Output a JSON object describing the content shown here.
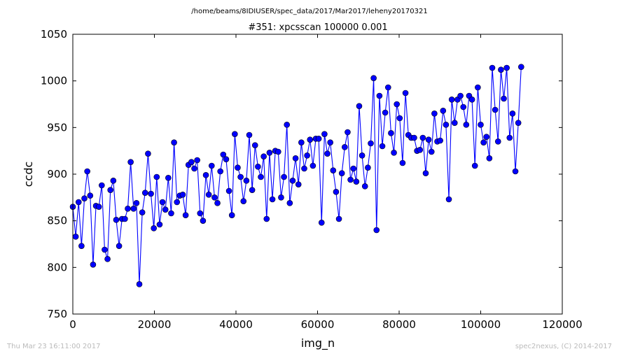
{
  "header": {
    "path": "/home/beams/8IDIUSER/spec_data/2017/Mar2017/leheny20170321"
  },
  "footer": {
    "timestamp": "Thu Mar 23 16:11:00 2017",
    "credit": "spec2nexus, (C) 2014-2017"
  },
  "colors": {
    "series": "#0000ff",
    "marker_fill": "#0000ff",
    "axes": "#000000"
  },
  "chart_data": {
    "type": "line",
    "title": "#351: xpcsscan 100000 0.001",
    "xlabel": "img_n",
    "ylabel": "ccdc",
    "xlim": [
      0,
      120000
    ],
    "ylim": [
      750,
      1050
    ],
    "xticks": [
      0,
      20000,
      40000,
      60000,
      80000,
      100000,
      120000
    ],
    "yticks": [
      750,
      800,
      850,
      900,
      950,
      1000,
      1050
    ],
    "grid": false,
    "markers": "circle",
    "series": [
      {
        "x_start": 0,
        "x_step": 709.2,
        "values": [
          865,
          833,
          870,
          823,
          874,
          903,
          877,
          803,
          866,
          865,
          888,
          819,
          809,
          883,
          893,
          851,
          823,
          852,
          852,
          863,
          913,
          863,
          869,
          782,
          859,
          880,
          922,
          879,
          842,
          897,
          846,
          870,
          862,
          896,
          858,
          934,
          870,
          877,
          878,
          856,
          910,
          913,
          906,
          915,
          858,
          850,
          899,
          878,
          909,
          875,
          869,
          903,
          921,
          916,
          882,
          856,
          943,
          907,
          897,
          871,
          893,
          942,
          883,
          931,
          908,
          897,
          919,
          852,
          923,
          873,
          925,
          924,
          875,
          897,
          953,
          869,
          893,
          917,
          889,
          934,
          906,
          920,
          937,
          909,
          938,
          938,
          848,
          943,
          922,
          934,
          904,
          881,
          852,
          901,
          929,
          945,
          894,
          906,
          892,
          973,
          920,
          887,
          907,
          933,
          1003,
          840,
          984,
          930,
          966,
          993,
          944,
          923,
          975,
          960,
          912,
          987,
          942,
          939,
          939,
          925,
          926,
          939,
          901,
          937,
          924,
          965,
          935,
          936,
          968,
          953,
          873,
          980,
          955,
          980,
          984,
          972,
          953,
          984,
          980,
          909,
          993,
          953,
          934,
          940,
          917,
          1014,
          969,
          935,
          1012,
          981,
          1014,
          939,
          965,
          903,
          955,
          1015
        ]
      }
    ]
  }
}
